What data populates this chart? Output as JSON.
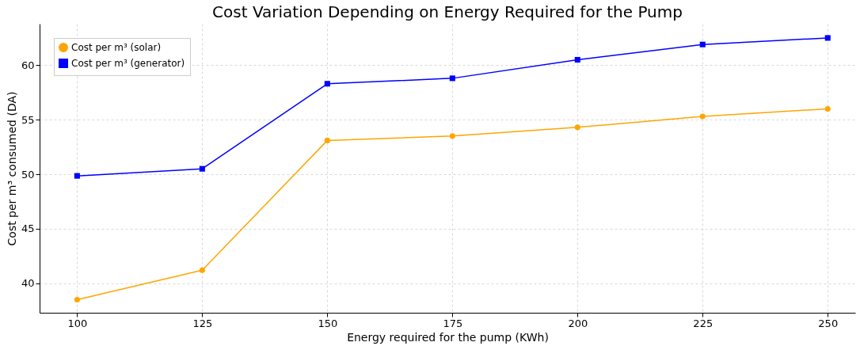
{
  "chart_data": {
    "type": "line",
    "title": "Cost Variation Depending on Energy Required for the Pump",
    "xlabel": "Energy required for the pump (KWh)",
    "ylabel": "Cost per m³ consumed (DA)",
    "x": [
      100,
      125,
      150,
      175,
      200,
      225,
      250
    ],
    "series": [
      {
        "name": "Cost per m³ (solar)",
        "color": "#ffa500",
        "marker": "circle",
        "values": [
          38.5,
          41.2,
          53.1,
          53.5,
          54.3,
          55.3,
          56.0
        ]
      },
      {
        "name": "Cost per m³ (generator)",
        "color": "#0000ff",
        "marker": "square",
        "values": [
          49.85,
          50.5,
          58.3,
          58.8,
          60.5,
          61.9,
          62.5
        ]
      }
    ],
    "xlim": [
      92.5,
      255.5
    ],
    "xticks": [
      100,
      125,
      150,
      175,
      200,
      225,
      250
    ],
    "ylim": [
      37.3,
      63.8
    ],
    "yticks": [
      40,
      45,
      50,
      55,
      60
    ],
    "grid": true,
    "legend": "top left",
    "line_style": "solid"
  }
}
